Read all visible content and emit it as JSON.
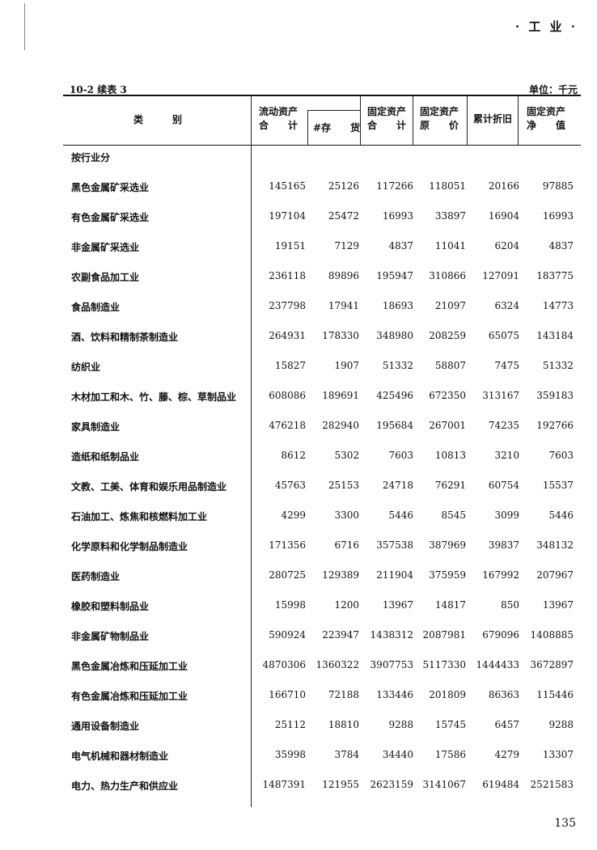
{
  "running_head": "· 工  业 ·",
  "table_id": "10-2  续表 3",
  "unit": "单位：千元",
  "headers": {
    "category": "类　　　别",
    "col1_line1": "流动资产",
    "col1_line2": "合　　计",
    "col2": "#存　　货",
    "col3_line1": "固定资产",
    "col3_line2": "合　　计",
    "col4_line1": "固定资产",
    "col4_line2": "原　　价",
    "col5": "累计折旧",
    "col6_line1": "固定资产",
    "col6_line2": "净　　值"
  },
  "section_label": "按行业分",
  "rows": [
    {
      "label": "黑色金属矿采选业",
      "values": [
        "145165",
        "25126",
        "117266",
        "118051",
        "20166",
        "97885"
      ]
    },
    {
      "label": "有色金属矿采选业",
      "values": [
        "197104",
        "25472",
        "16993",
        "33897",
        "16904",
        "16993"
      ]
    },
    {
      "label": "非金属矿采选业",
      "values": [
        "19151",
        "7129",
        "4837",
        "11041",
        "6204",
        "4837"
      ]
    },
    {
      "label": "农副食品加工业",
      "values": [
        "236118",
        "89896",
        "195947",
        "310866",
        "127091",
        "183775"
      ]
    },
    {
      "label": "食品制造业",
      "values": [
        "237798",
        "17941",
        "18693",
        "21097",
        "6324",
        "14773"
      ]
    },
    {
      "label": "酒、饮料和精制茶制造业",
      "values": [
        "264931",
        "178330",
        "348980",
        "208259",
        "65075",
        "143184"
      ]
    },
    {
      "label": "纺织业",
      "values": [
        "15827",
        "1907",
        "51332",
        "58807",
        "7475",
        "51332"
      ]
    },
    {
      "label": "木材加工和木、竹、藤、棕、草制品业",
      "values": [
        "608086",
        "189691",
        "425496",
        "672350",
        "313167",
        "359183"
      ]
    },
    {
      "label": "家具制造业",
      "values": [
        "476218",
        "282940",
        "195684",
        "267001",
        "74235",
        "192766"
      ]
    },
    {
      "label": "造纸和纸制品业",
      "values": [
        "8612",
        "5302",
        "7603",
        "10813",
        "3210",
        "7603"
      ]
    },
    {
      "label": "文教、工美、体育和娱乐用品制造业",
      "values": [
        "45763",
        "25153",
        "24718",
        "76291",
        "60754",
        "15537"
      ]
    },
    {
      "label": "石油加工、炼焦和核燃料加工业",
      "values": [
        "4299",
        "3300",
        "5446",
        "8545",
        "3099",
        "5446"
      ]
    },
    {
      "label": "化学原料和化学制品制造业",
      "values": [
        "171356",
        "6716",
        "357538",
        "387969",
        "39837",
        "348132"
      ]
    },
    {
      "label": "医药制造业",
      "values": [
        "280725",
        "129389",
        "211904",
        "375959",
        "167992",
        "207967"
      ]
    },
    {
      "label": "橡胶和塑料制品业",
      "values": [
        "15998",
        "1200",
        "13967",
        "14817",
        "850",
        "13967"
      ]
    },
    {
      "label": "非金属矿物制品业",
      "values": [
        "590924",
        "223947",
        "1438312",
        "2087981",
        "679096",
        "1408885"
      ]
    },
    {
      "label": "黑色金属冶炼和压延加工业",
      "values": [
        "4870306",
        "1360322",
        "3907753",
        "5117330",
        "1444433",
        "3672897"
      ]
    },
    {
      "label": "有色金属冶炼和压延加工业",
      "values": [
        "166710",
        "72188",
        "133446",
        "201809",
        "86363",
        "115446"
      ]
    },
    {
      "label": "通用设备制造业",
      "values": [
        "25112",
        "18810",
        "9288",
        "15745",
        "6457",
        "9288"
      ]
    },
    {
      "label": "电气机械和器材制造业",
      "values": [
        "35998",
        "3784",
        "34440",
        "17586",
        "4279",
        "13307"
      ]
    },
    {
      "label": "电力、热力生产和供应业",
      "values": [
        "1487391",
        "121955",
        "2623159",
        "3141067",
        "619484",
        "2521583"
      ]
    }
  ],
  "page_number": "135"
}
